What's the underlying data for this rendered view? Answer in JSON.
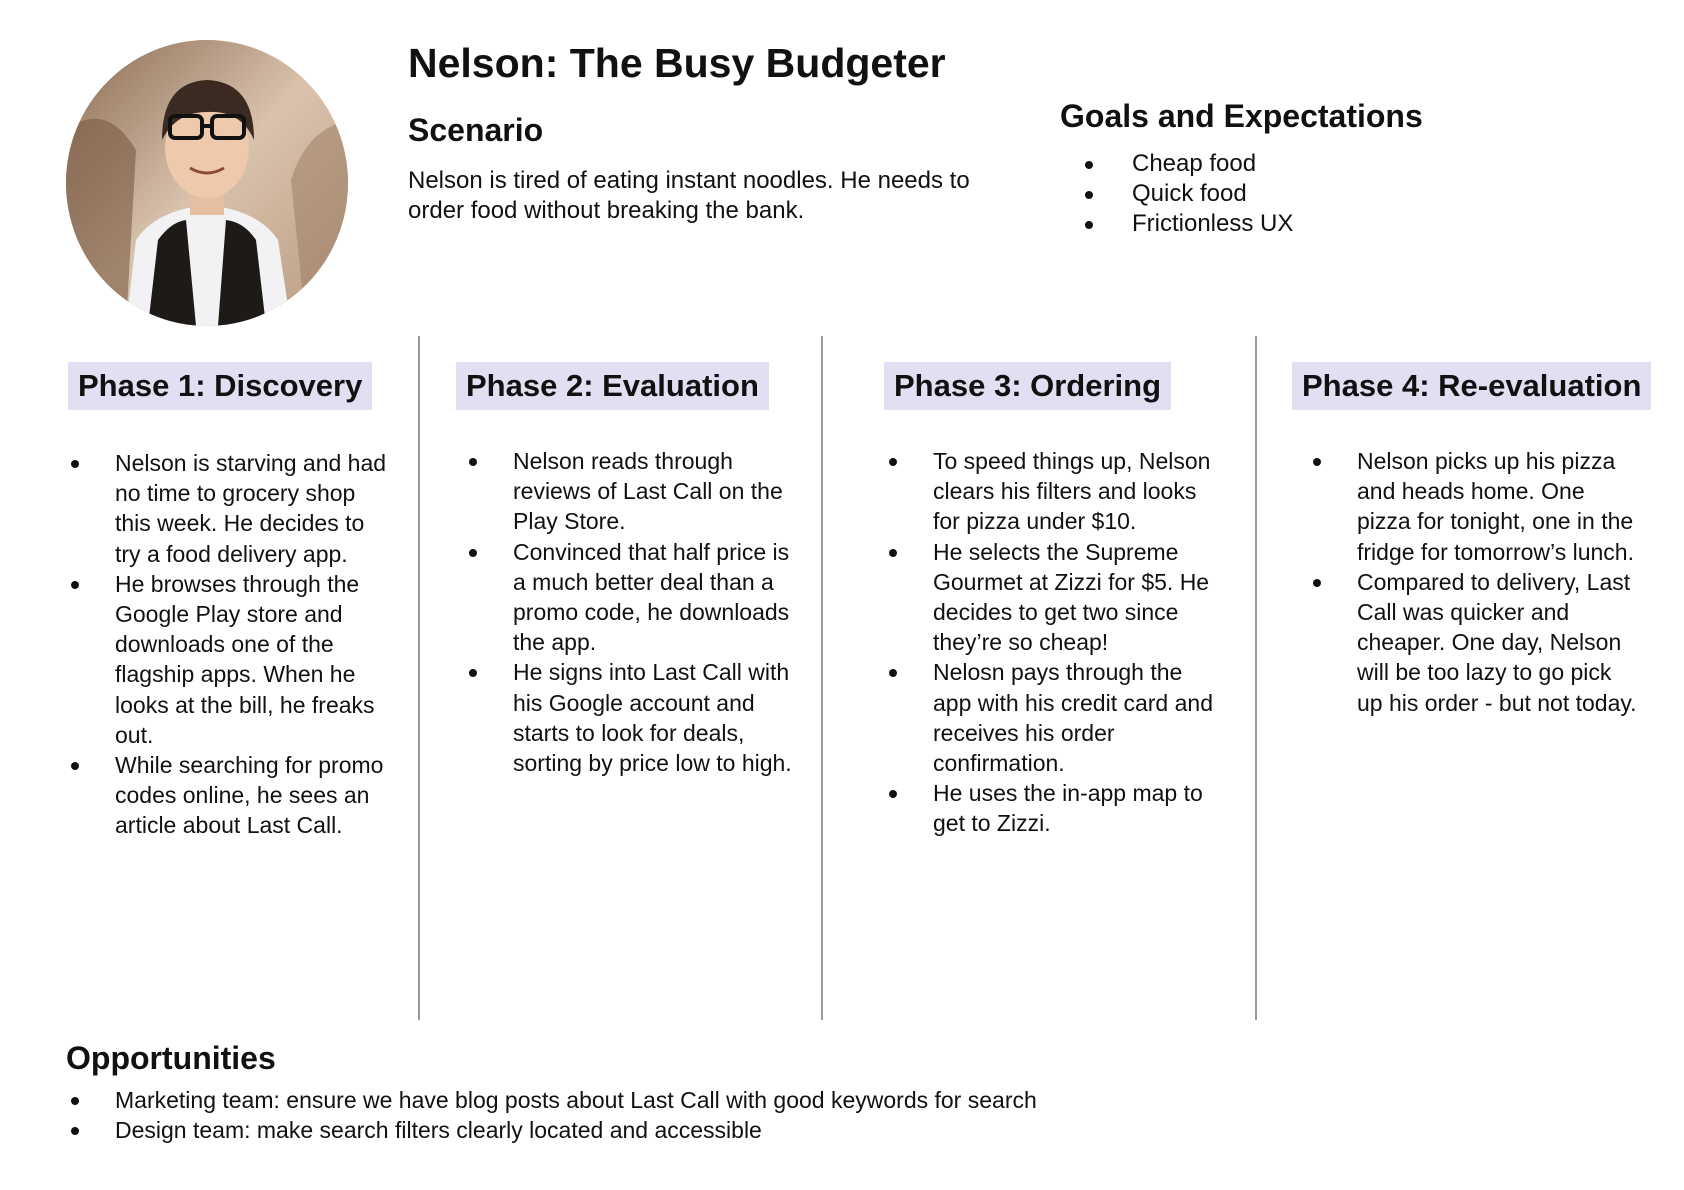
{
  "persona": {
    "title": "Nelson: The Busy Budgeter",
    "avatar_icon": "person-photo"
  },
  "scenario": {
    "heading": "Scenario",
    "text": "Nelson is tired of eating instant noodles. He needs to order food without breaking the bank."
  },
  "goals": {
    "heading": "Goals and Expectations",
    "items": [
      "Cheap food",
      "Quick food",
      "Frictionless UX"
    ]
  },
  "phases": [
    {
      "title": "Phase 1: Discovery",
      "items": [
        "Nelson is starving and had no time to grocery shop this week. He decides to try a food delivery app.",
        "He browses through the Google Play store and downloads one of the flagship apps. When he looks at the bill, he freaks out.",
        "While searching for promo codes online, he sees an article about Last Call."
      ]
    },
    {
      "title": "Phase 2: Evaluation",
      "items": [
        "Nelson reads through reviews of Last Call on the Play Store.",
        "Convinced that half price is a much better deal than a promo code, he downloads the app.",
        "He signs into Last Call with his Google account and starts to look for deals, sorting by price low to high."
      ]
    },
    {
      "title": "Phase 3: Ordering",
      "items": [
        "To speed things up, Nelson clears his filters and looks for pizza under $10.",
        "He selects the Supreme Gourmet at Zizzi for $5. He decides to get two since they’re so cheap!",
        "Nelosn pays through the app with his credit card and receives his order confirmation.",
        "He uses the in-app map to get to Zizzi."
      ]
    },
    {
      "title": "Phase 4: Re-evaluation",
      "items": [
        "Nelson picks up his pizza and heads home. One pizza for tonight, one in the fridge for tomorrow’s lunch.",
        "Compared to delivery, Last Call was quicker and cheaper. One day, Nelson will be too lazy to go pick up his order - but not today."
      ]
    }
  ],
  "opportunities": {
    "heading": "Opportunities",
    "items": [
      "Marketing team: ensure we have blog posts about Last Call with good keywords for search",
      "Design team: make search filters clearly located and accessible"
    ]
  }
}
